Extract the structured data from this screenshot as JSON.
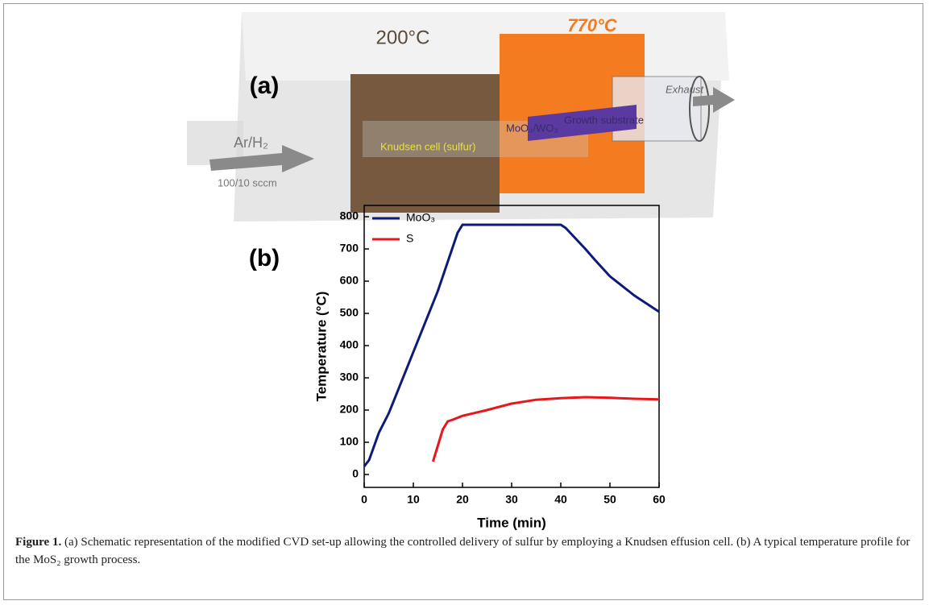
{
  "schematic": {
    "panel_label": "(a)",
    "temp_left": "200°C",
    "temp_right": "770°C",
    "knudsen": "Knudsen cell (sulfur)",
    "precursor": "MoO₃/WO₃",
    "substrate": "Growth substrate",
    "exhaust": "Exhaust",
    "gas": "Ar/H₂",
    "flow": "100/10 sccm"
  },
  "chart_data": {
    "type": "line",
    "panel_label": "(b)",
    "x_label": "Time (min)",
    "y_label": "Temperature (°C)",
    "xlim": [
      0,
      60
    ],
    "xticks": [
      0,
      10,
      20,
      30,
      40,
      50,
      60
    ],
    "ylim": [
      -40,
      835
    ],
    "yticks": [
      0,
      100,
      200,
      300,
      400,
      500,
      600,
      700,
      800
    ],
    "grid": false,
    "legend": "upper left",
    "series": [
      {
        "name": "MoO₃",
        "color": "#0d1a7a",
        "x": [
          0,
          1,
          3,
          5,
          10,
          15,
          19,
          20,
          40,
          41,
          45,
          47,
          50,
          55,
          60
        ],
        "values": [
          25,
          45,
          130,
          190,
          380,
          570,
          750,
          775,
          775,
          765,
          700,
          665,
          615,
          555,
          505
        ]
      },
      {
        "name": "S",
        "color": "#e8171c",
        "x": [
          14,
          15,
          16,
          17,
          18,
          20,
          25,
          30,
          35,
          40,
          45,
          50,
          55,
          60
        ],
        "values": [
          40,
          90,
          140,
          165,
          170,
          182,
          200,
          220,
          232,
          237,
          240,
          238,
          235,
          233
        ]
      }
    ]
  },
  "caption": {
    "label": "Figure 1.",
    "text": "(a) Schematic representation of the modified CVD set-up allowing the controlled delivery of sulfur by employing a Knudsen effusion cell. (b) A typical temperature profile for the MoS₂ growth process."
  }
}
